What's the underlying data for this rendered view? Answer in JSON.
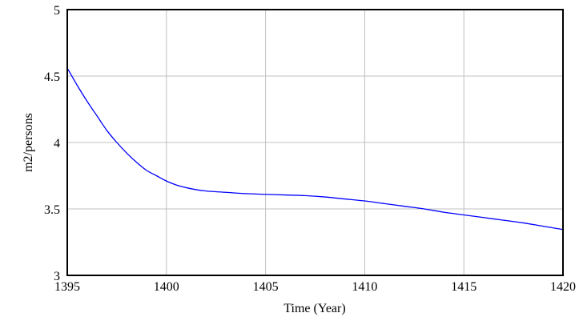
{
  "chart_data": {
    "type": "line",
    "title": "",
    "xlabel": "Time (Year)",
    "ylabel": "m2/persons",
    "xlim": [
      1395,
      1420
    ],
    "ylim": [
      3,
      5
    ],
    "x_ticks": [
      1395,
      1400,
      1405,
      1410,
      1415,
      1420
    ],
    "y_ticks": [
      3,
      3.5,
      4,
      4.5,
      5
    ],
    "x_tick_labels": [
      "1395",
      "1400",
      "1405",
      "1410",
      "1415",
      "1420"
    ],
    "y_tick_labels": [
      "3",
      "3.5",
      "4",
      "4.5",
      "5"
    ],
    "grid": true,
    "legend": "none",
    "series": [
      {
        "color": "#0000ff",
        "x": [
          1395,
          1395.5,
          1396,
          1396.5,
          1397,
          1397.5,
          1398,
          1398.5,
          1399,
          1399.5,
          1400,
          1400.5,
          1401,
          1401.5,
          1402,
          1403,
          1404,
          1405,
          1406,
          1407,
          1408,
          1409,
          1410,
          1411,
          1412,
          1413,
          1414,
          1415,
          1416,
          1417,
          1418,
          1419,
          1420
        ],
        "y": [
          4.56,
          4.43,
          4.31,
          4.2,
          4.09,
          4.0,
          3.92,
          3.85,
          3.79,
          3.75,
          3.71,
          3.68,
          3.66,
          3.645,
          3.635,
          3.625,
          3.615,
          3.61,
          3.605,
          3.6,
          3.59,
          3.575,
          3.56,
          3.54,
          3.52,
          3.5,
          3.475,
          3.455,
          3.435,
          3.415,
          3.395,
          3.37,
          3.345
        ]
      }
    ]
  }
}
